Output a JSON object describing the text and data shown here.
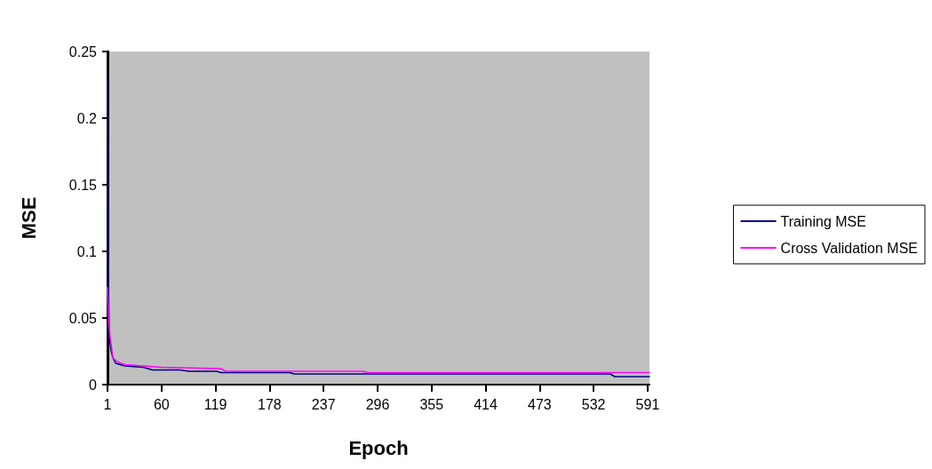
{
  "chart_data": {
    "type": "line",
    "xlabel": "Epoch",
    "ylabel": "MSE",
    "xlim": [
      1,
      593
    ],
    "xticks": [
      1,
      60,
      119,
      178,
      237,
      296,
      355,
      414,
      473,
      532,
      591
    ],
    "ylim": [
      0,
      0.25
    ],
    "yticks": [
      0,
      0.05,
      0.1,
      0.15,
      0.2,
      0.25
    ],
    "grid": false,
    "legend": "right",
    "marker": "none",
    "line_style": "solid",
    "series": [
      {
        "name": "Training MSE",
        "color": "#000080",
        "x": [
          1,
          1.5,
          2,
          3,
          5,
          7,
          10,
          20,
          40,
          50,
          80,
          90,
          120,
          125,
          200,
          205,
          550,
          555,
          593
        ],
        "values": [
          0.23,
          0.165,
          0.075,
          0.035,
          0.025,
          0.02,
          0.016,
          0.014,
          0.013,
          0.011,
          0.011,
          0.01,
          0.01,
          0.009,
          0.009,
          0.008,
          0.008,
          0.006,
          0.006
        ]
      },
      {
        "name": "Cross Validation MSE",
        "color": "#ff00ff",
        "x": [
          1,
          2,
          4,
          7,
          12,
          20,
          40,
          60,
          125,
          130,
          280,
          285,
          593
        ],
        "values": [
          0.073,
          0.05,
          0.035,
          0.02,
          0.017,
          0.015,
          0.014,
          0.013,
          0.012,
          0.01,
          0.01,
          0.009,
          0.009
        ]
      }
    ]
  }
}
